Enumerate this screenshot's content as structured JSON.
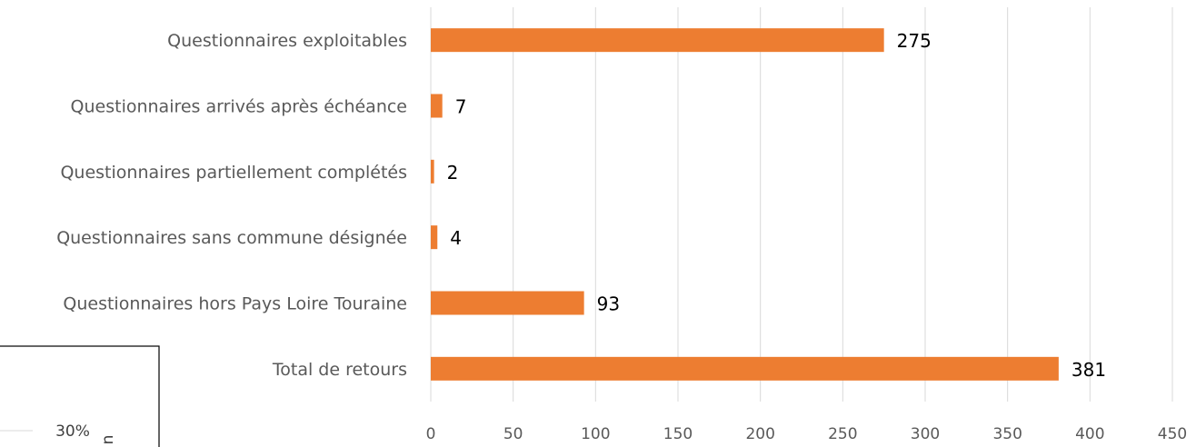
{
  "chart_data": {
    "type": "bar",
    "orientation": "horizontal",
    "categories": [
      "Questionnaires exploitables",
      "Questionnaires arrivés après échéance",
      "Questionnaires partiellement complétés",
      "Questionnaires sans commune désignée",
      "Questionnaires hors Pays Loire Touraine",
      "Total de retours"
    ],
    "values": [
      275,
      7,
      2,
      4,
      93,
      381
    ],
    "data_labels": [
      "275",
      "7",
      "2",
      "4",
      "93",
      "381"
    ],
    "xlim": [
      0,
      450
    ],
    "x_ticks": [
      0,
      50,
      100,
      150,
      200,
      250,
      300,
      350,
      400,
      450
    ],
    "x_tick_labels": [
      "0",
      "50",
      "100",
      "150",
      "200",
      "250",
      "300",
      "350",
      "400",
      "450"
    ],
    "grid": "vertical",
    "bar_color": "#ED7D31"
  },
  "inset": {
    "label": "30%",
    "rotated_glyph": "n"
  }
}
